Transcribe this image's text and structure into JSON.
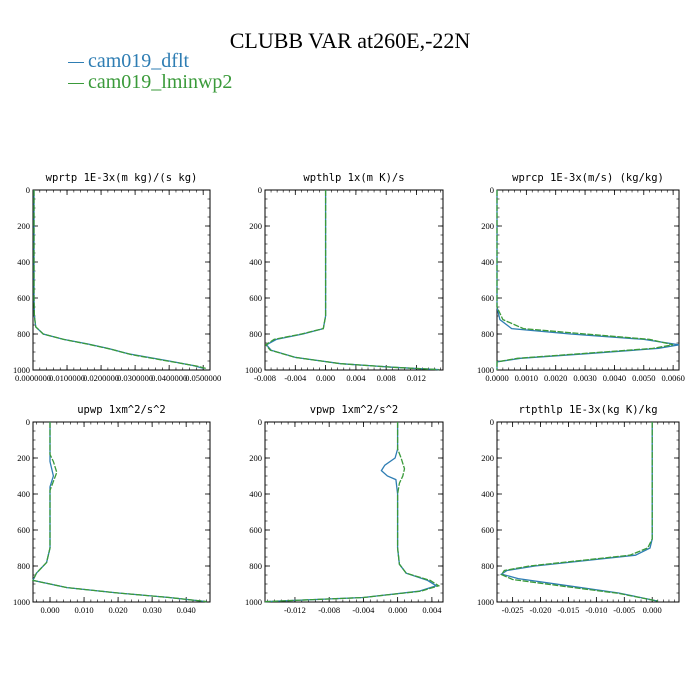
{
  "title": "CLUBB VAR at260E,-22N",
  "legend": [
    {
      "label": "cam019_dflt",
      "color": "#2e7db3"
    },
    {
      "label": "cam019_lminwp2",
      "color": "#3a9a3a"
    }
  ],
  "chart_data": [
    {
      "type": "line",
      "title": "wprtp  1E-3x(m kg)/(s kg)",
      "xlim": [
        0,
        0.052
      ],
      "ylim": [
        0,
        1000
      ],
      "y_inverted": true,
      "xticks": [
        0,
        0.01,
        0.02,
        0.03,
        0.04,
        0.05
      ],
      "xtick_labels": [
        "0.0000000",
        "0.0100000",
        "0.0200000",
        "0.0300000",
        "0.0400000",
        "0.0500000"
      ],
      "yticks": [
        0,
        200,
        400,
        600,
        800,
        1000
      ],
      "series": [
        {
          "name": "cam019_dflt",
          "x": [
            0.0003,
            0.0003,
            0.0003,
            0.0004,
            0.0008,
            0.003,
            0.009,
            0.016,
            0.022,
            0.028,
            0.04,
            0.047,
            0.05
          ],
          "y": [
            0,
            300,
            600,
            700,
            760,
            800,
            830,
            855,
            880,
            910,
            950,
            975,
            990
          ]
        },
        {
          "name": "cam019_lminwp2",
          "x": [
            0.0003,
            0.0003,
            0.0003,
            0.0004,
            0.0008,
            0.003,
            0.009,
            0.017,
            0.023,
            0.029,
            0.041,
            0.048,
            0.051
          ],
          "y": [
            0,
            300,
            600,
            700,
            760,
            800,
            830,
            860,
            885,
            915,
            955,
            978,
            992
          ]
        }
      ]
    },
    {
      "type": "line",
      "title": "wpthlp  1x(m K)/s",
      "xlim": [
        -0.008,
        0.0155
      ],
      "ylim": [
        0,
        1000
      ],
      "y_inverted": true,
      "xticks": [
        -0.008,
        -0.004,
        0,
        0.004,
        0.008,
        0.012
      ],
      "xtick_labels": [
        "-0.008",
        "-0.004",
        "0.000",
        "0.004",
        "0.008",
        "0.012"
      ],
      "yticks": [
        0,
        200,
        400,
        600,
        800,
        1000
      ],
      "series": [
        {
          "name": "cam019_dflt",
          "x": [
            0.0,
            0.0,
            0.0,
            0.0,
            -0.0003,
            -0.003,
            -0.0065,
            -0.0078,
            -0.0072,
            -0.004,
            0.002,
            0.009,
            0.015
          ],
          "y": [
            0,
            200,
            400,
            700,
            770,
            800,
            830,
            860,
            890,
            930,
            965,
            985,
            998
          ]
        },
        {
          "name": "cam019_lminwp2",
          "x": [
            0.0,
            0.0,
            0.0,
            0.0,
            -0.0003,
            -0.0032,
            -0.0068,
            -0.0079,
            -0.0073,
            -0.004,
            0.002,
            0.009,
            0.015
          ],
          "y": [
            0,
            200,
            400,
            700,
            770,
            800,
            830,
            860,
            890,
            930,
            965,
            985,
            998
          ]
        }
      ]
    },
    {
      "type": "line",
      "title": "wprcp  1E-3x(m/s) (kg/kg)",
      "xlim": [
        0,
        0.0062
      ],
      "ylim": [
        0,
        1000
      ],
      "y_inverted": true,
      "xticks": [
        0,
        0.001,
        0.002,
        0.003,
        0.004,
        0.005,
        0.006
      ],
      "xtick_labels": [
        "0.0000",
        "0.0010",
        "0.0020",
        "0.0030",
        "0.0040",
        "0.0050",
        "0.0060"
      ],
      "yticks": [
        0,
        200,
        400,
        600,
        800,
        1000
      ],
      "series": [
        {
          "name": "cam019_dflt",
          "x": [
            0,
            0,
            0,
            0.0001,
            0.0005,
            0.0025,
            0.005,
            0.0062,
            0.0055,
            0.003,
            0.0008,
            0,
            0
          ],
          "y": [
            0,
            300,
            650,
            720,
            770,
            800,
            830,
            860,
            880,
            910,
            935,
            955,
            1000
          ]
        },
        {
          "name": "cam019_lminwp2",
          "x": [
            0,
            0,
            0,
            0.0002,
            0.0009,
            0.003,
            0.0052,
            0.006,
            0.0053,
            0.0028,
            0.0007,
            0,
            0
          ],
          "y": [
            0,
            300,
            650,
            720,
            770,
            800,
            830,
            860,
            880,
            910,
            935,
            955,
            1000
          ]
        }
      ]
    },
    {
      "type": "line",
      "title": "upwp  1xm^2/s^2",
      "xlim": [
        -0.005,
        0.047
      ],
      "ylim": [
        0,
        1000
      ],
      "y_inverted": true,
      "xticks": [
        0,
        0.01,
        0.02,
        0.03,
        0.04
      ],
      "xtick_labels": [
        "0.000",
        "0.010",
        "0.020",
        "0.030",
        "0.040"
      ],
      "yticks": [
        0,
        200,
        400,
        600,
        800,
        1000
      ],
      "series": [
        {
          "name": "cam019_dflt",
          "x": [
            0,
            0,
            0,
            0.001,
            0.0,
            0,
            0,
            -0.001,
            -0.004,
            -0.005,
            0.005,
            0.02,
            0.035,
            0.046
          ],
          "y": [
            0,
            180,
            220,
            300,
            360,
            500,
            700,
            780,
            840,
            880,
            920,
            950,
            975,
            998
          ]
        },
        {
          "name": "cam019_lminwp2",
          "x": [
            0,
            0,
            0.001,
            0.002,
            0.0,
            0,
            0,
            -0.001,
            -0.004,
            -0.005,
            0.005,
            0.02,
            0.035,
            0.046
          ],
          "y": [
            0,
            180,
            220,
            280,
            380,
            500,
            700,
            780,
            840,
            880,
            920,
            950,
            975,
            998
          ]
        }
      ]
    },
    {
      "type": "line",
      "title": "vpwp  1xm^2/s^2",
      "xlim": [
        -0.0155,
        0.0053
      ],
      "ylim": [
        0,
        1000
      ],
      "y_inverted": true,
      "xticks": [
        -0.012,
        -0.008,
        -0.004,
        0
      ],
      "xtick_labels": [
        "-0.012",
        "-0.008",
        "-0.004",
        "0.000",
        "0.004"
      ],
      "xtick_extra": [
        0.004
      ],
      "yticks": [
        0,
        200,
        400,
        600,
        800,
        1000
      ],
      "series": [
        {
          "name": "cam019_dflt",
          "x": [
            0,
            0,
            -0.0003,
            -0.0015,
            -0.0019,
            -0.0012,
            -0.0002,
            0,
            0,
            0.0002,
            0.001,
            0.0035,
            0.0045,
            0.0025,
            -0.004,
            -0.0155
          ],
          "y": [
            0,
            150,
            200,
            240,
            270,
            300,
            320,
            400,
            700,
            790,
            840,
            880,
            910,
            940,
            975,
            998
          ]
        },
        {
          "name": "cam019_lminwp2",
          "x": [
            0,
            0,
            0.0004,
            0.0008,
            0.0006,
            0.0002,
            0,
            0,
            0.0002,
            0.001,
            0.0038,
            0.0048,
            0.0027,
            -0.004,
            -0.0155
          ],
          "y": [
            0,
            150,
            200,
            260,
            300,
            340,
            400,
            700,
            790,
            840,
            880,
            910,
            940,
            975,
            998
          ]
        }
      ]
    },
    {
      "type": "line",
      "title": "rtpthlp  1E-3x(kg K)/kg",
      "xlim": [
        -0.0278,
        0.0048
      ],
      "ylim": [
        0,
        1000
      ],
      "y_inverted": true,
      "xticks": [
        -0.025,
        -0.02,
        -0.015,
        -0.01,
        -0.005,
        0
      ],
      "xtick_labels": [
        "-0.025",
        "-0.020",
        "-0.015",
        "-0.010",
        "-0.005",
        "0.000"
      ],
      "yticks": [
        0,
        200,
        400,
        600,
        800,
        1000
      ],
      "series": [
        {
          "name": "cam019_dflt",
          "x": [
            0,
            0,
            0,
            -0.0004,
            -0.003,
            -0.012,
            -0.021,
            -0.026,
            -0.027,
            -0.024,
            -0.015,
            -0.006,
            0.001
          ],
          "y": [
            0,
            400,
            650,
            700,
            740,
            770,
            800,
            825,
            845,
            870,
            910,
            950,
            995
          ]
        },
        {
          "name": "cam019_lminwp2",
          "x": [
            0,
            0,
            0,
            -0.0008,
            -0.004,
            -0.013,
            -0.022,
            -0.0265,
            -0.027,
            -0.025,
            -0.016,
            -0.006,
            0.001
          ],
          "y": [
            0,
            400,
            650,
            700,
            740,
            770,
            800,
            825,
            848,
            875,
            912,
            952,
            995
          ]
        }
      ]
    }
  ]
}
